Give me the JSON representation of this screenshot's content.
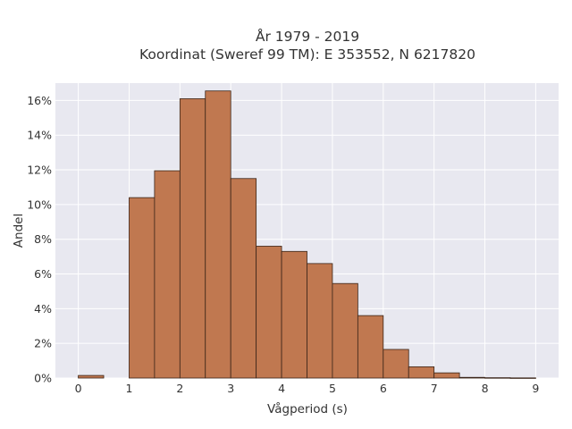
{
  "chart_data": {
    "type": "bar",
    "title": "År 1979 - 2019",
    "subtitle": "Koordinat (Sweref 99 TM): E 353552, N 6217820",
    "xlabel": "Vågperiod (s)",
    "ylabel": "Andel",
    "bin_width": 0.5,
    "bins": [
      {
        "start": 0.0,
        "value": 0.0015
      },
      {
        "start": 0.5,
        "value": 0.0
      },
      {
        "start": 1.0,
        "value": 0.104
      },
      {
        "start": 1.5,
        "value": 0.1195
      },
      {
        "start": 2.0,
        "value": 0.161
      },
      {
        "start": 2.5,
        "value": 0.1655
      },
      {
        "start": 3.0,
        "value": 0.115
      },
      {
        "start": 3.5,
        "value": 0.076
      },
      {
        "start": 4.0,
        "value": 0.073
      },
      {
        "start": 4.5,
        "value": 0.066
      },
      {
        "start": 5.0,
        "value": 0.0545
      },
      {
        "start": 5.5,
        "value": 0.036
      },
      {
        "start": 6.0,
        "value": 0.0165
      },
      {
        "start": 6.5,
        "value": 0.0065
      },
      {
        "start": 7.0,
        "value": 0.003
      },
      {
        "start": 7.5,
        "value": 0.0004
      },
      {
        "start": 8.0,
        "value": 0.0002
      },
      {
        "start": 8.5,
        "value": 0.0001
      }
    ],
    "xlim": [
      -0.45,
      9.45
    ],
    "ylim": [
      0,
      0.17
    ],
    "x_ticks": [
      0,
      1,
      2,
      3,
      4,
      5,
      6,
      7,
      8,
      9
    ],
    "x_tick_labels": [
      "0",
      "1",
      "2",
      "3",
      "4",
      "5",
      "6",
      "7",
      "8",
      "9"
    ],
    "y_ticks": [
      0,
      0.02,
      0.04,
      0.06,
      0.08,
      0.1,
      0.12,
      0.14,
      0.16
    ],
    "y_tick_labels": [
      "0%",
      "2%",
      "4%",
      "6%",
      "8%",
      "10%",
      "12%",
      "14%",
      "16%"
    ],
    "grid": true,
    "colors": {
      "bar_fill": "#c07850",
      "bar_edge": "#3a2418",
      "plot_background": "#e8e8f0",
      "grid": "#ffffff"
    }
  }
}
